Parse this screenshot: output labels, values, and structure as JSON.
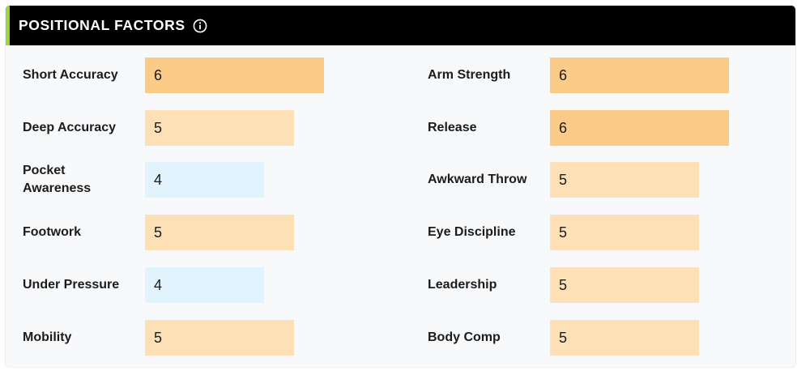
{
  "header": {
    "title": "POSITIONAL FACTORS",
    "info_icon": "info-circle-icon"
  },
  "scale_max": 6,
  "colors": {
    "header_bg": "#000000",
    "accent": "#9bd53b",
    "high": "#fccb87",
    "mid": "#fde0b6",
    "low": "#e1f3fc"
  },
  "factors_left": [
    {
      "label": "Short Accuracy",
      "value": "6"
    },
    {
      "label": "Deep Accuracy",
      "value": "5"
    },
    {
      "label": "Pocket Awareness",
      "value": "4"
    },
    {
      "label": "Footwork",
      "value": "5"
    },
    {
      "label": "Under Pressure",
      "value": "4"
    },
    {
      "label": "Mobility",
      "value": "5"
    }
  ],
  "factors_right": [
    {
      "label": "Arm Strength",
      "value": "6"
    },
    {
      "label": "Release",
      "value": "6"
    },
    {
      "label": "Awkward Throw",
      "value": "5"
    },
    {
      "label": "Eye Discipline",
      "value": "5"
    },
    {
      "label": "Leadership",
      "value": "5"
    },
    {
      "label": "Body Comp",
      "value": "5"
    }
  ]
}
